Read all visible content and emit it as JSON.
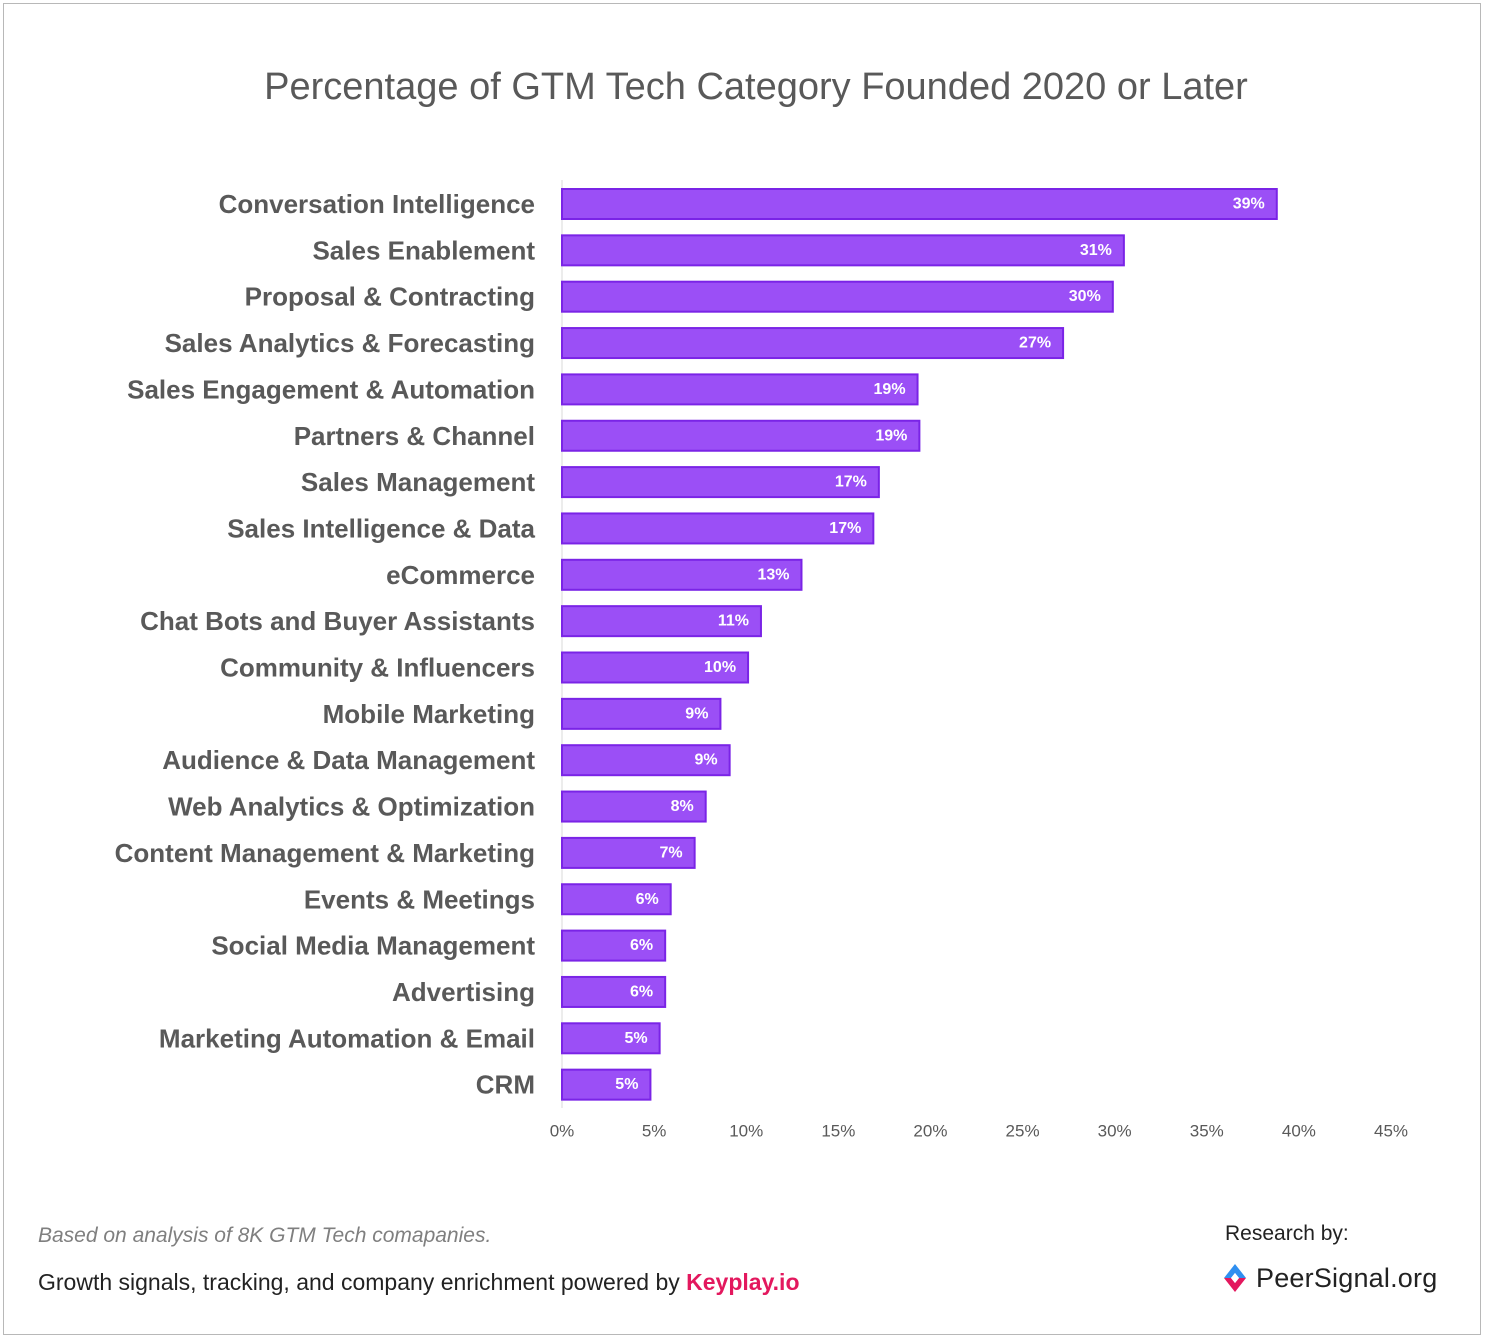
{
  "chart_data": {
    "type": "bar",
    "orientation": "horizontal",
    "title": "Percentage of GTM Tech Category Founded 2020 or Later",
    "categories": [
      "Conversation Intelligence",
      "Sales Enablement",
      "Proposal & Contracting",
      "Sales Analytics & Forecasting",
      "Sales Engagement & Automation",
      "Partners & Channel",
      "Sales Management",
      "Sales Intelligence & Data",
      "eCommerce",
      "Chat Bots and Buyer Assistants",
      "Community & Influencers",
      "Mobile Marketing",
      "Audience & Data Management",
      "Web Analytics & Optimization",
      "Content Management & Marketing",
      "Events & Meetings",
      "Social Media Management",
      "Advertising",
      "Marketing Automation & Email",
      "CRM"
    ],
    "values": [
      38.8,
      30.5,
      29.9,
      27.2,
      19.3,
      19.4,
      17.2,
      16.9,
      13.0,
      10.8,
      10.1,
      8.6,
      9.1,
      7.8,
      7.2,
      5.9,
      5.6,
      5.6,
      5.3,
      4.8
    ],
    "data_labels": [
      "39%",
      "31%",
      "30%",
      "27%",
      "19%",
      "19%",
      "17%",
      "17%",
      "13%",
      "11%",
      "10%",
      "9%",
      "9%",
      "8%",
      "7%",
      "6%",
      "6%",
      "6%",
      "5%",
      "5%"
    ],
    "xlim": [
      0,
      45
    ],
    "x_ticks": [
      0,
      5,
      10,
      15,
      20,
      25,
      30,
      35,
      40,
      45
    ],
    "x_tick_labels": [
      "0%",
      "5%",
      "10%",
      "15%",
      "20%",
      "25%",
      "30%",
      "35%",
      "40%",
      "45%"
    ],
    "xlabel": "",
    "ylabel": "",
    "grid": false,
    "legend": "none",
    "bar_color": "#9b4ff6",
    "bar_border_color": "#7a24e6"
  },
  "footer": {
    "note": "Based on analysis of 8K GTM Tech comapanies.",
    "powered_text": "Growth signals, tracking, and company enrichment powered by ",
    "powered_brand": "Keyplay.io",
    "research_label": "Research by:",
    "research_brand": "PeerSignal.org"
  },
  "colors": {
    "brand_pink": "#e3185e",
    "logo_blue": "#2f8ff0",
    "logo_red": "#e3185e"
  }
}
